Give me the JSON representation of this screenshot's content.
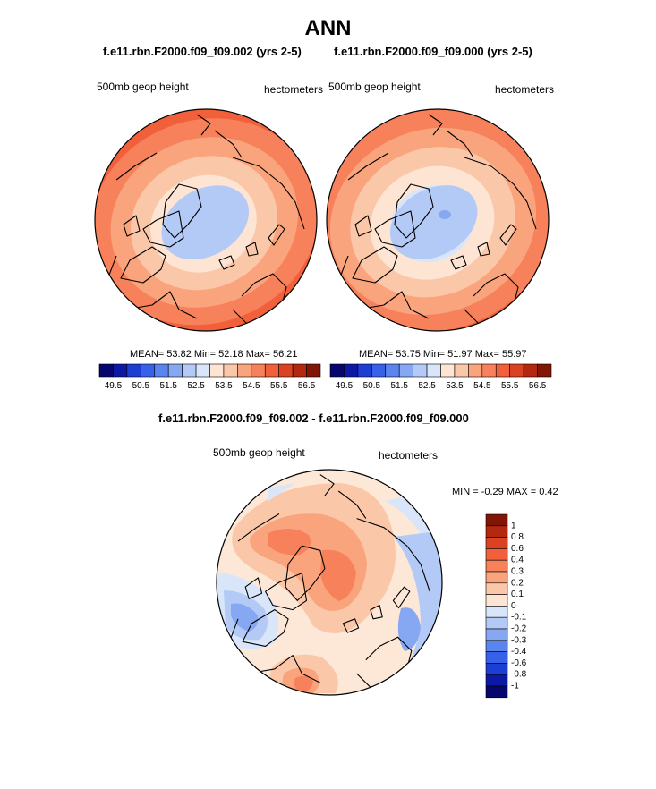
{
  "page": {
    "main_title": "ANN",
    "diff_title": "f.e11.rbn.F2000.f09_f09.002 - f.e11.rbn.F2000.f09_f09.000"
  },
  "colors": {
    "blue_ramp": [
      "#06066e",
      "#0b19a5",
      "#1d3ed2",
      "#3761e8",
      "#5b85ee",
      "#86a8f2",
      "#b4caf6",
      "#d9e6fa"
    ],
    "red_ramp": [
      "#fde4d3",
      "#fbc7a9",
      "#f9a47d",
      "#f7815a",
      "#f2603b",
      "#db4222",
      "#b42810",
      "#821606"
    ],
    "coast": "#000000",
    "neutral": "#eef3fb"
  },
  "chart_data": [
    {
      "type": "heatmap",
      "projection": "north polar stereographic",
      "title": "f.e11.rbn.F2000.f09_f09.002 (yrs 2-5)",
      "left_label": "500mb geop height",
      "right_label": "hectometers",
      "stats": {
        "mean_label": "MEAN=",
        "mean": "53.82",
        "min_label": "Min=",
        "min": "52.18",
        "max_label": "Max=",
        "max": "56.21"
      },
      "field": {
        "low_center": 52.2,
        "high_rim": 56.2
      },
      "colorbar": {
        "orientation": "horizontal",
        "levels": [
          49.5,
          49.75,
          50,
          50.25,
          50.5,
          50.75,
          51,
          51.25,
          51.5,
          51.75,
          52,
          52.25,
          52.5,
          52.75,
          53,
          53.25,
          53.5,
          53.75,
          54,
          54.25,
          54.5,
          54.75,
          55,
          55.25,
          55.5,
          55.75,
          56,
          56.25,
          56.5
        ],
        "tick_labels": [
          "49.5",
          "50.5",
          "51.5",
          "52.5",
          "53.5",
          "54.5",
          "55.5",
          "56.5"
        ]
      }
    },
    {
      "type": "heatmap",
      "projection": "north polar stereographic",
      "title": "f.e11.rbn.F2000.f09_f09.000 (yrs 2-5)",
      "left_label": "500mb geop height",
      "right_label": "hectometers",
      "stats": {
        "mean_label": "MEAN=",
        "mean": "53.75",
        "min_label": "Min=",
        "min": "51.97",
        "max_label": "Max=",
        "max": "55.97"
      },
      "field": {
        "low_center": 51.97,
        "high_rim": 55.97
      },
      "colorbar": {
        "orientation": "horizontal",
        "tick_labels": [
          "49.5",
          "50.5",
          "51.5",
          "52.5",
          "53.5",
          "54.5",
          "55.5",
          "56.5"
        ]
      }
    },
    {
      "type": "heatmap",
      "projection": "north polar stereographic",
      "title": "f.e11.rbn.F2000.f09_f09.002 - f.e11.rbn.F2000.f09_f09.000",
      "left_label": "500mb geop height",
      "right_label": "hectometers",
      "stats": {
        "min_label": "MIN =",
        "min": "-0.29",
        "max_label": "MAX =",
        "max": "0.42"
      },
      "colorbar": {
        "orientation": "vertical",
        "levels": [
          -1,
          -0.8,
          -0.6,
          -0.4,
          -0.3,
          -0.2,
          -0.1,
          0,
          0.1,
          0.2,
          0.3,
          0.4,
          0.6,
          0.8,
          1
        ],
        "tick_labels": [
          "1",
          "0.8",
          "0.6",
          "0.4",
          "0.3",
          "0.2",
          "0.1",
          "0",
          "-0.1",
          "-0.2",
          "-0.3",
          "-0.4",
          "-0.6",
          "-0.8",
          "-1"
        ]
      }
    }
  ]
}
